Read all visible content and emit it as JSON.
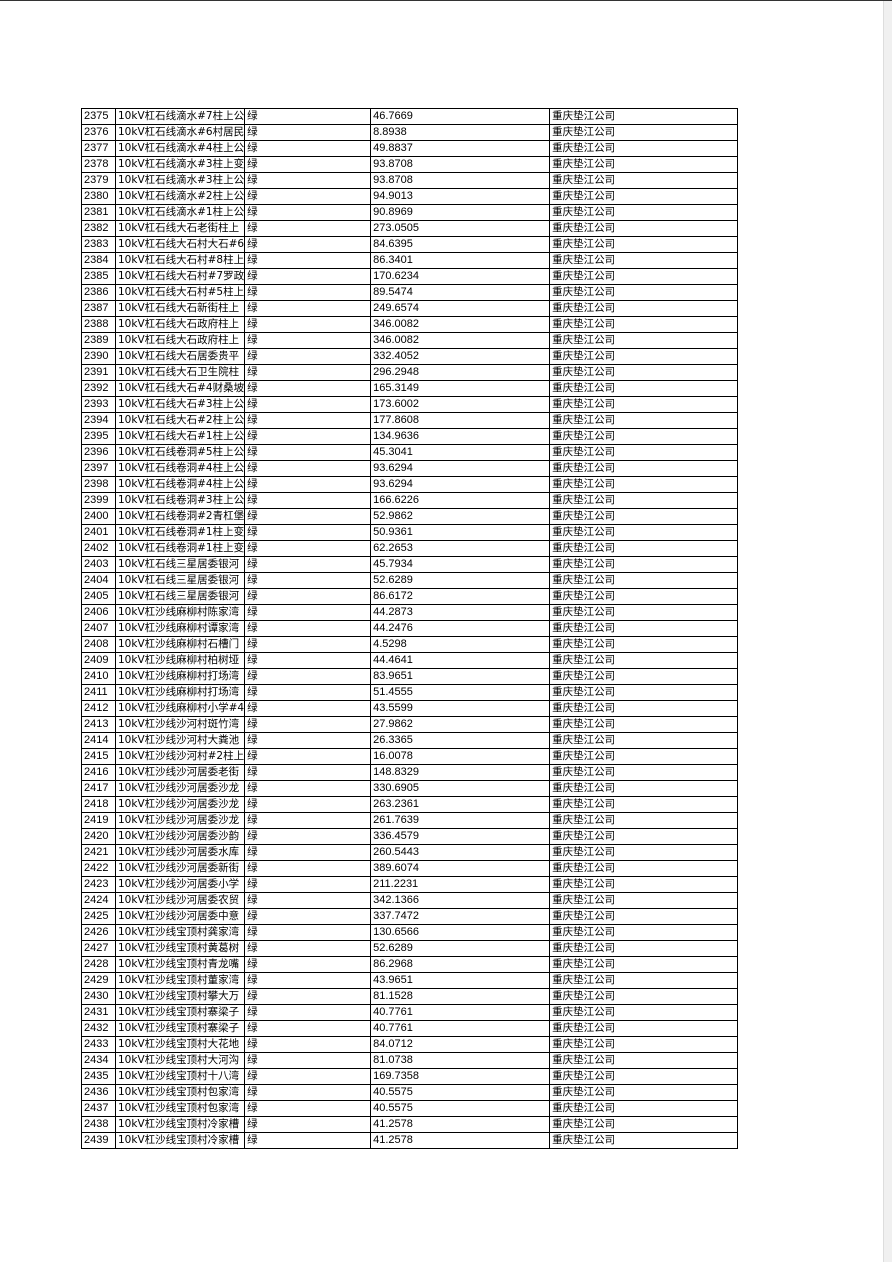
{
  "table": {
    "rows": [
      [
        "2375",
        "10kV杠石线滴水#7柱上公",
        "绿",
        "46.7669",
        "重庆垫江公司"
      ],
      [
        "2376",
        "10kV杠石线滴水#6村居民",
        "绿",
        "8.8938",
        "重庆垫江公司"
      ],
      [
        "2377",
        "10kV杠石线滴水#4柱上公",
        "绿",
        "49.8837",
        "重庆垫江公司"
      ],
      [
        "2378",
        "10kV杠石线滴水#3柱上变",
        "绿",
        "93.8708",
        "重庆垫江公司"
      ],
      [
        "2379",
        "10kV杠石线滴水#3柱上公",
        "绿",
        "93.8708",
        "重庆垫江公司"
      ],
      [
        "2380",
        "10kV杠石线滴水#2柱上公",
        "绿",
        "94.9013",
        "重庆垫江公司"
      ],
      [
        "2381",
        "10kV杠石线滴水#1柱上公",
        "绿",
        "90.8969",
        "重庆垫江公司"
      ],
      [
        "2382",
        "10kV杠石线大石老街柱上",
        "绿",
        "273.0505",
        "重庆垫江公司"
      ],
      [
        "2383",
        "10kV杠石线大石村大石#6",
        "绿",
        "84.6395",
        "重庆垫江公司"
      ],
      [
        "2384",
        "10kV杠石线大石村#8柱上",
        "绿",
        "86.3401",
        "重庆垫江公司"
      ],
      [
        "2385",
        "10kV杠石线大石村#7罗政",
        "绿",
        "170.6234",
        "重庆垫江公司"
      ],
      [
        "2386",
        "10kV杠石线大石村#5柱上",
        "绿",
        "89.5474",
        "重庆垫江公司"
      ],
      [
        "2387",
        "10kV杠石线大石新街柱上",
        "绿",
        "249.6574",
        "重庆垫江公司"
      ],
      [
        "2388",
        "10kV杠石线大石政府柱上",
        "绿",
        "346.0082",
        "重庆垫江公司"
      ],
      [
        "2389",
        "10kV杠石线大石政府柱上",
        "绿",
        "346.0082",
        "重庆垫江公司"
      ],
      [
        "2390",
        "10kV杠石线大石居委贵平",
        "绿",
        "332.4052",
        "重庆垫江公司"
      ],
      [
        "2391",
        "10kV杠石线大石卫生院柱",
        "绿",
        "296.2948",
        "重庆垫江公司"
      ],
      [
        "2392",
        "10kV杠石线大石#4财桑坡",
        "绿",
        "165.3149",
        "重庆垫江公司"
      ],
      [
        "2393",
        "10kV杠石线大石#3柱上公",
        "绿",
        "173.6002",
        "重庆垫江公司"
      ],
      [
        "2394",
        "10kV杠石线大石#2柱上公",
        "绿",
        "177.8608",
        "重庆垫江公司"
      ],
      [
        "2395",
        "10kV杠石线大石#1柱上公",
        "绿",
        "134.9636",
        "重庆垫江公司"
      ],
      [
        "2396",
        "10kV杠石线卷洞#5柱上公",
        "绿",
        "45.3041",
        "重庆垫江公司"
      ],
      [
        "2397",
        "10kV杠石线卷洞#4柱上公",
        "绿",
        "93.6294",
        "重庆垫江公司"
      ],
      [
        "2398",
        "10kV杠石线卷洞#4柱上公",
        "绿",
        "93.6294",
        "重庆垫江公司"
      ],
      [
        "2399",
        "10kV杠石线卷洞#3柱上公",
        "绿",
        "166.6226",
        "重庆垫江公司"
      ],
      [
        "2400",
        "10kV杠石线卷洞#2青杠堡",
        "绿",
        "52.9862",
        "重庆垫江公司"
      ],
      [
        "2401",
        "10kV杠石线卷洞#1柱上变",
        "绿",
        "50.9361",
        "重庆垫江公司"
      ],
      [
        "2402",
        "10kV杠石线卷洞#1柱上变",
        "绿",
        "62.2653",
        "重庆垫江公司"
      ],
      [
        "2403",
        "10kV杠石线三星居委银河",
        "绿",
        "45.7934",
        "重庆垫江公司"
      ],
      [
        "2404",
        "10kV杠石线三星居委银河",
        "绿",
        "52.6289",
        "重庆垫江公司"
      ],
      [
        "2405",
        "10kV杠石线三星居委银河",
        "绿",
        "86.6172",
        "重庆垫江公司"
      ],
      [
        "2406",
        "10kV杠沙线麻柳村陈家湾",
        "绿",
        "44.2873",
        "重庆垫江公司"
      ],
      [
        "2407",
        "10kV杠沙线麻柳村谭家湾",
        "绿",
        "44.2476",
        "重庆垫江公司"
      ],
      [
        "2408",
        "10kV杠沙线麻柳村石槽门",
        "绿",
        "4.5298",
        "重庆垫江公司"
      ],
      [
        "2409",
        "10kV杠沙线麻柳村柏树垭",
        "绿",
        "44.4641",
        "重庆垫江公司"
      ],
      [
        "2410",
        "10kV杠沙线麻柳村打场湾",
        "绿",
        "83.9651",
        "重庆垫江公司"
      ],
      [
        "2411",
        "10kV杠沙线麻柳村打场湾",
        "绿",
        "51.4555",
        "重庆垫江公司"
      ],
      [
        "2412",
        "10kV杠沙线麻柳村小学#4",
        "绿",
        "43.5599",
        "重庆垫江公司"
      ],
      [
        "2413",
        "10kV杠沙线沙河村斑竹湾",
        "绿",
        "27.9862",
        "重庆垫江公司"
      ],
      [
        "2414",
        "10kV杠沙线沙河村大粪池",
        "绿",
        "26.3365",
        "重庆垫江公司"
      ],
      [
        "2415",
        "10kV杠沙线沙河村#2柱上",
        "绿",
        "16.0078",
        "重庆垫江公司"
      ],
      [
        "2416",
        "10kV杠沙线沙河居委老街",
        "绿",
        "148.8329",
        "重庆垫江公司"
      ],
      [
        "2417",
        "10kV杠沙线沙河居委沙龙",
        "绿",
        "330.6905",
        "重庆垫江公司"
      ],
      [
        "2418",
        "10kV杠沙线沙河居委沙龙",
        "绿",
        "263.2361",
        "重庆垫江公司"
      ],
      [
        "2419",
        "10kV杠沙线沙河居委沙龙",
        "绿",
        "261.7639",
        "重庆垫江公司"
      ],
      [
        "2420",
        "10kV杠沙线沙河居委沙韵",
        "绿",
        "336.4579",
        "重庆垫江公司"
      ],
      [
        "2421",
        "10kV杠沙线沙河居委水库",
        "绿",
        "260.5443",
        "重庆垫江公司"
      ],
      [
        "2422",
        "10kV杠沙线沙河居委新街",
        "绿",
        "389.6074",
        "重庆垫江公司"
      ],
      [
        "2423",
        "10kV杠沙线沙河居委小学",
        "绿",
        "211.2231",
        "重庆垫江公司"
      ],
      [
        "2424",
        "10kV杠沙线沙河居委农贸",
        "绿",
        "342.1366",
        "重庆垫江公司"
      ],
      [
        "2425",
        "10kV杠沙线沙河居委中意",
        "绿",
        "337.7472",
        "重庆垫江公司"
      ],
      [
        "2426",
        "10kV杠沙线宝顶村龚家湾",
        "绿",
        "130.6566",
        "重庆垫江公司"
      ],
      [
        "2427",
        "10kV杠沙线宝顶村黄葛树",
        "绿",
        "52.6289",
        "重庆垫江公司"
      ],
      [
        "2428",
        "10kV杠沙线宝顶村青龙嘴",
        "绿",
        "86.2968",
        "重庆垫江公司"
      ],
      [
        "2429",
        "10kV杠沙线宝顶村董家湾",
        "绿",
        "43.9651",
        "重庆垫江公司"
      ],
      [
        "2430",
        "10kV杠沙线宝顶村攀大万",
        "绿",
        "81.1528",
        "重庆垫江公司"
      ],
      [
        "2431",
        "10kV杠沙线宝顶村寨梁子",
        "绿",
        "40.7761",
        "重庆垫江公司"
      ],
      [
        "2432",
        "10kV杠沙线宝顶村寨梁子",
        "绿",
        "40.7761",
        "重庆垫江公司"
      ],
      [
        "2433",
        "10kV杠沙线宝顶村大花地",
        "绿",
        "84.0712",
        "重庆垫江公司"
      ],
      [
        "2434",
        "10kV杠沙线宝顶村大河沟",
        "绿",
        "81.0738",
        "重庆垫江公司"
      ],
      [
        "2435",
        "10kV杠沙线宝顶村十八湾",
        "绿",
        "169.7358",
        "重庆垫江公司"
      ],
      [
        "2436",
        "10kV杠沙线宝顶村包家湾",
        "绿",
        "40.5575",
        "重庆垫江公司"
      ],
      [
        "2437",
        "10kV杠沙线宝顶村包家湾",
        "绿",
        "40.5575",
        "重庆垫江公司"
      ],
      [
        "2438",
        "10kV杠沙线宝顶村冷家槽",
        "绿",
        "41.2578",
        "重庆垫江公司"
      ],
      [
        "2439",
        "10kV杠沙线宝顶村冷家槽",
        "绿",
        "41.2578",
        "重庆垫江公司"
      ]
    ]
  }
}
